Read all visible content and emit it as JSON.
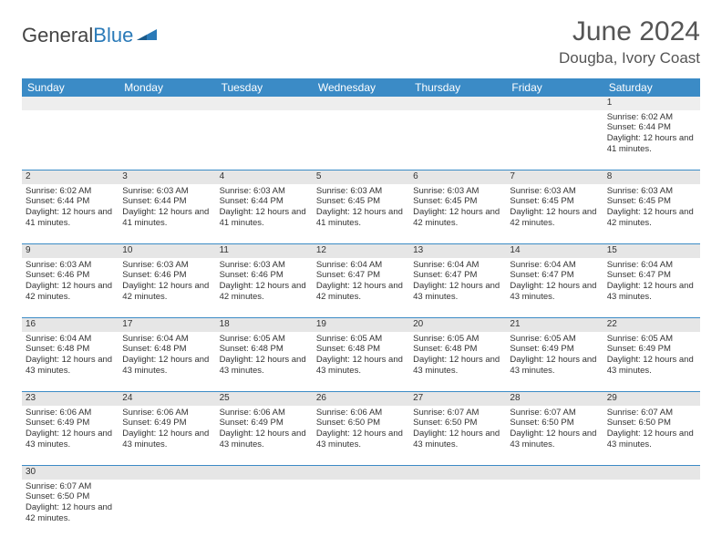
{
  "logo": {
    "text1": "General",
    "text2": "Blue"
  },
  "title": "June 2024",
  "location": "Dougba, Ivory Coast",
  "colors": {
    "header_bg": "#3b8bc6",
    "header_fg": "#ffffff",
    "daynum_bg": "#e6e6e6",
    "border": "#3b8bc6",
    "text": "#333333"
  },
  "weekday_labels": [
    "Sunday",
    "Monday",
    "Tuesday",
    "Wednesday",
    "Thursday",
    "Friday",
    "Saturday"
  ],
  "weeks": [
    [
      null,
      null,
      null,
      null,
      null,
      null,
      {
        "d": "1",
        "sr": "Sunrise: 6:02 AM",
        "ss": "Sunset: 6:44 PM",
        "dl": "Daylight: 12 hours and 41 minutes."
      }
    ],
    [
      {
        "d": "2",
        "sr": "Sunrise: 6:02 AM",
        "ss": "Sunset: 6:44 PM",
        "dl": "Daylight: 12 hours and 41 minutes."
      },
      {
        "d": "3",
        "sr": "Sunrise: 6:03 AM",
        "ss": "Sunset: 6:44 PM",
        "dl": "Daylight: 12 hours and 41 minutes."
      },
      {
        "d": "4",
        "sr": "Sunrise: 6:03 AM",
        "ss": "Sunset: 6:44 PM",
        "dl": "Daylight: 12 hours and 41 minutes."
      },
      {
        "d": "5",
        "sr": "Sunrise: 6:03 AM",
        "ss": "Sunset: 6:45 PM",
        "dl": "Daylight: 12 hours and 41 minutes."
      },
      {
        "d": "6",
        "sr": "Sunrise: 6:03 AM",
        "ss": "Sunset: 6:45 PM",
        "dl": "Daylight: 12 hours and 42 minutes."
      },
      {
        "d": "7",
        "sr": "Sunrise: 6:03 AM",
        "ss": "Sunset: 6:45 PM",
        "dl": "Daylight: 12 hours and 42 minutes."
      },
      {
        "d": "8",
        "sr": "Sunrise: 6:03 AM",
        "ss": "Sunset: 6:45 PM",
        "dl": "Daylight: 12 hours and 42 minutes."
      }
    ],
    [
      {
        "d": "9",
        "sr": "Sunrise: 6:03 AM",
        "ss": "Sunset: 6:46 PM",
        "dl": "Daylight: 12 hours and 42 minutes."
      },
      {
        "d": "10",
        "sr": "Sunrise: 6:03 AM",
        "ss": "Sunset: 6:46 PM",
        "dl": "Daylight: 12 hours and 42 minutes."
      },
      {
        "d": "11",
        "sr": "Sunrise: 6:03 AM",
        "ss": "Sunset: 6:46 PM",
        "dl": "Daylight: 12 hours and 42 minutes."
      },
      {
        "d": "12",
        "sr": "Sunrise: 6:04 AM",
        "ss": "Sunset: 6:47 PM",
        "dl": "Daylight: 12 hours and 42 minutes."
      },
      {
        "d": "13",
        "sr": "Sunrise: 6:04 AM",
        "ss": "Sunset: 6:47 PM",
        "dl": "Daylight: 12 hours and 43 minutes."
      },
      {
        "d": "14",
        "sr": "Sunrise: 6:04 AM",
        "ss": "Sunset: 6:47 PM",
        "dl": "Daylight: 12 hours and 43 minutes."
      },
      {
        "d": "15",
        "sr": "Sunrise: 6:04 AM",
        "ss": "Sunset: 6:47 PM",
        "dl": "Daylight: 12 hours and 43 minutes."
      }
    ],
    [
      {
        "d": "16",
        "sr": "Sunrise: 6:04 AM",
        "ss": "Sunset: 6:48 PM",
        "dl": "Daylight: 12 hours and 43 minutes."
      },
      {
        "d": "17",
        "sr": "Sunrise: 6:04 AM",
        "ss": "Sunset: 6:48 PM",
        "dl": "Daylight: 12 hours and 43 minutes."
      },
      {
        "d": "18",
        "sr": "Sunrise: 6:05 AM",
        "ss": "Sunset: 6:48 PM",
        "dl": "Daylight: 12 hours and 43 minutes."
      },
      {
        "d": "19",
        "sr": "Sunrise: 6:05 AM",
        "ss": "Sunset: 6:48 PM",
        "dl": "Daylight: 12 hours and 43 minutes."
      },
      {
        "d": "20",
        "sr": "Sunrise: 6:05 AM",
        "ss": "Sunset: 6:48 PM",
        "dl": "Daylight: 12 hours and 43 minutes."
      },
      {
        "d": "21",
        "sr": "Sunrise: 6:05 AM",
        "ss": "Sunset: 6:49 PM",
        "dl": "Daylight: 12 hours and 43 minutes."
      },
      {
        "d": "22",
        "sr": "Sunrise: 6:05 AM",
        "ss": "Sunset: 6:49 PM",
        "dl": "Daylight: 12 hours and 43 minutes."
      }
    ],
    [
      {
        "d": "23",
        "sr": "Sunrise: 6:06 AM",
        "ss": "Sunset: 6:49 PM",
        "dl": "Daylight: 12 hours and 43 minutes."
      },
      {
        "d": "24",
        "sr": "Sunrise: 6:06 AM",
        "ss": "Sunset: 6:49 PM",
        "dl": "Daylight: 12 hours and 43 minutes."
      },
      {
        "d": "25",
        "sr": "Sunrise: 6:06 AM",
        "ss": "Sunset: 6:49 PM",
        "dl": "Daylight: 12 hours and 43 minutes."
      },
      {
        "d": "26",
        "sr": "Sunrise: 6:06 AM",
        "ss": "Sunset: 6:50 PM",
        "dl": "Daylight: 12 hours and 43 minutes."
      },
      {
        "d": "27",
        "sr": "Sunrise: 6:07 AM",
        "ss": "Sunset: 6:50 PM",
        "dl": "Daylight: 12 hours and 43 minutes."
      },
      {
        "d": "28",
        "sr": "Sunrise: 6:07 AM",
        "ss": "Sunset: 6:50 PM",
        "dl": "Daylight: 12 hours and 43 minutes."
      },
      {
        "d": "29",
        "sr": "Sunrise: 6:07 AM",
        "ss": "Sunset: 6:50 PM",
        "dl": "Daylight: 12 hours and 43 minutes."
      }
    ],
    [
      {
        "d": "30",
        "sr": "Sunrise: 6:07 AM",
        "ss": "Sunset: 6:50 PM",
        "dl": "Daylight: 12 hours and 42 minutes."
      },
      null,
      null,
      null,
      null,
      null,
      null
    ]
  ]
}
